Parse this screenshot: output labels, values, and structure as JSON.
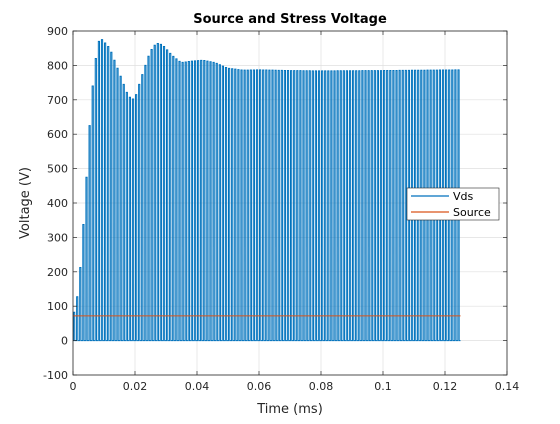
{
  "chart_data": {
    "type": "line",
    "title": "Source and Stress Voltage",
    "xlabel": "Time (ms)",
    "ylabel": "Voltage (V)",
    "xlim": [
      0,
      0.14
    ],
    "ylim": [
      -100,
      900
    ],
    "xticks": [
      0,
      0.02,
      0.04,
      0.06,
      0.08,
      0.1,
      0.12,
      0.14
    ],
    "xtick_labels": [
      "0",
      "0.02",
      "0.04",
      "0.06",
      "0.08",
      "0.1",
      "0.12",
      "0.14"
    ],
    "yticks": [
      -100,
      0,
      100,
      200,
      300,
      400,
      500,
      600,
      700,
      800,
      900
    ],
    "ytick_labels": [
      "-100",
      "0",
      "100",
      "200",
      "300",
      "400",
      "500",
      "600",
      "700",
      "800",
      "900"
    ],
    "grid": true,
    "legend_position": "right",
    "series": [
      {
        "name": "Vds",
        "color": "#0072BD",
        "style": "switching-waveform",
        "x_range": [
          0,
          0.125
        ],
        "switching_period": 0.001,
        "low_level": 0,
        "upper_envelope": {
          "x": [
            0,
            0.002,
            0.004,
            0.006,
            0.008,
            0.009,
            0.012,
            0.015,
            0.018,
            0.02,
            0.022,
            0.025,
            0.027,
            0.029,
            0.032,
            0.035,
            0.038,
            0.042,
            0.046,
            0.05,
            0.055,
            0.06,
            0.07,
            0.08,
            0.1,
            0.125
          ],
          "y": [
            60,
            150,
            400,
            700,
            860,
            880,
            850,
            780,
            710,
            700,
            760,
            840,
            865,
            860,
            830,
            808,
            812,
            815,
            808,
            792,
            786,
            787,
            785,
            784,
            785,
            787
          ]
        }
      },
      {
        "name": "Source",
        "color": "#D95319",
        "style": "constant",
        "x": [
          0,
          0.125
        ],
        "y": [
          72,
          72
        ]
      }
    ]
  }
}
